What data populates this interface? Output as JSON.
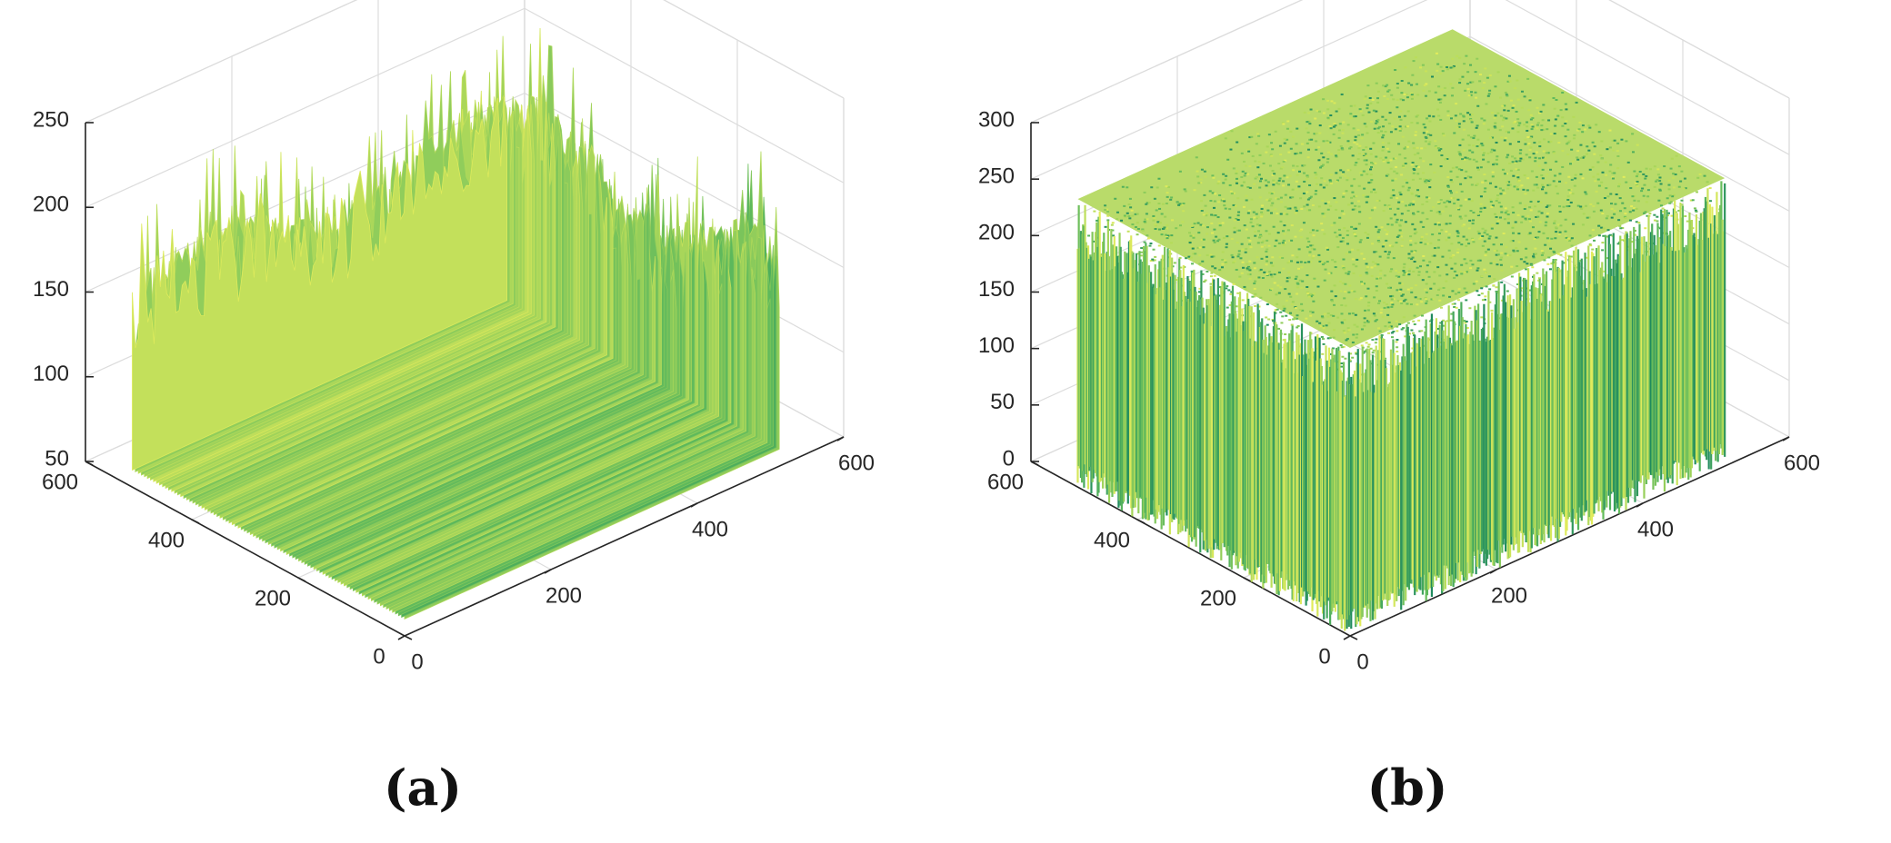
{
  "chart_data": [
    {
      "type": "surface",
      "title": "",
      "xlabel": "",
      "ylabel": "",
      "zlabel": "",
      "xlim": [
        0,
        600
      ],
      "ylim": [
        0,
        600
      ],
      "zlim": [
        50,
        250
      ],
      "xticks": [
        "0",
        "200",
        "400",
        "600"
      ],
      "yticks": [
        "0",
        "200",
        "400",
        "600"
      ],
      "zticks": [
        "50",
        "100",
        "150",
        "200",
        "250"
      ],
      "surface": {
        "x_range": [
          0,
          512
        ],
        "y_range": [
          0,
          512
        ],
        "z_min": 55,
        "z_max": 235,
        "z_mean": 150
      },
      "grid": true,
      "colormap": [
        "#1f8a5e",
        "#5cb85c",
        "#a8d65a",
        "#e3ec5c"
      ]
    },
    {
      "type": "surface",
      "title": "",
      "xlabel": "",
      "ylabel": "",
      "zlabel": "",
      "xlim": [
        0,
        600
      ],
      "ylim": [
        0,
        600
      ],
      "zlim": [
        0,
        300
      ],
      "xticks": [
        "0",
        "200",
        "400",
        "600"
      ],
      "yticks": [
        "0",
        "200",
        "400",
        "600"
      ],
      "zticks": [
        "0",
        "50",
        "100",
        "150",
        "200",
        "250",
        "300"
      ],
      "surface": {
        "x_range": [
          0,
          512
        ],
        "y_range": [
          0,
          512
        ],
        "z_min": 0,
        "z_max": 255,
        "z_mean": 128
      },
      "grid": true,
      "colormap": [
        "#1f8a5e",
        "#5cb85c",
        "#a8d65a",
        "#e3ec5c"
      ]
    }
  ],
  "captions": {
    "a": "(a)",
    "b": "(b)"
  }
}
